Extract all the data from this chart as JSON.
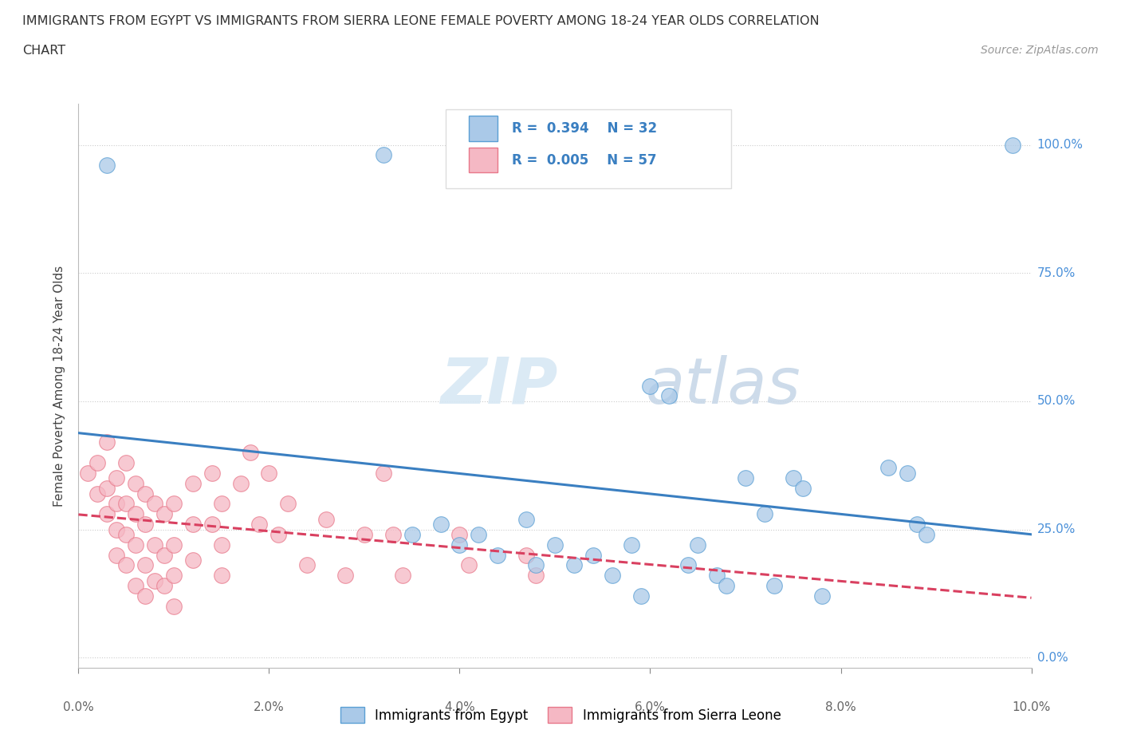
{
  "title_line1": "IMMIGRANTS FROM EGYPT VS IMMIGRANTS FROM SIERRA LEONE FEMALE POVERTY AMONG 18-24 YEAR OLDS CORRELATION",
  "title_line2": "CHART",
  "source_text": "Source: ZipAtlas.com",
  "ylabel": "Female Poverty Among 18-24 Year Olds",
  "xlim": [
    0.0,
    0.1
  ],
  "ylim": [
    -0.02,
    1.08
  ],
  "xtick_vals": [
    0.0,
    0.02,
    0.04,
    0.06,
    0.08,
    0.1
  ],
  "ytick_vals": [
    0.0,
    0.25,
    0.5,
    0.75,
    1.0
  ],
  "ytick_labels": [
    "0.0%",
    "25.0%",
    "50.0%",
    "75.0%",
    "100.0%"
  ],
  "egypt_color": "#aac9e8",
  "egypt_edge": "#5a9fd4",
  "sierra_color": "#f5b8c4",
  "sierra_edge": "#e8788a",
  "egypt_R": 0.394,
  "egypt_N": 32,
  "sierra_R": 0.005,
  "sierra_N": 57,
  "egypt_line_color": "#3a7fc1",
  "sierra_line_color": "#d94060",
  "watermark_zip": "ZIP",
  "watermark_atlas": "atlas",
  "legend_label_egypt": "Immigrants from Egypt",
  "legend_label_sierra": "Immigrants from Sierra Leone",
  "egypt_points": [
    [
      0.003,
      0.96
    ],
    [
      0.032,
      0.98
    ],
    [
      0.035,
      0.24
    ],
    [
      0.038,
      0.26
    ],
    [
      0.04,
      0.22
    ],
    [
      0.042,
      0.24
    ],
    [
      0.044,
      0.2
    ],
    [
      0.047,
      0.27
    ],
    [
      0.048,
      0.18
    ],
    [
      0.05,
      0.22
    ],
    [
      0.052,
      0.18
    ],
    [
      0.054,
      0.2
    ],
    [
      0.056,
      0.16
    ],
    [
      0.058,
      0.22
    ],
    [
      0.059,
      0.12
    ],
    [
      0.06,
      0.53
    ],
    [
      0.062,
      0.51
    ],
    [
      0.064,
      0.18
    ],
    [
      0.065,
      0.22
    ],
    [
      0.067,
      0.16
    ],
    [
      0.068,
      0.14
    ],
    [
      0.07,
      0.35
    ],
    [
      0.072,
      0.28
    ],
    [
      0.073,
      0.14
    ],
    [
      0.075,
      0.35
    ],
    [
      0.076,
      0.33
    ],
    [
      0.078,
      0.12
    ],
    [
      0.085,
      0.37
    ],
    [
      0.087,
      0.36
    ],
    [
      0.088,
      0.26
    ],
    [
      0.089,
      0.24
    ],
    [
      0.098,
      1.0
    ]
  ],
  "sierra_points": [
    [
      0.001,
      0.36
    ],
    [
      0.002,
      0.38
    ],
    [
      0.002,
      0.32
    ],
    [
      0.003,
      0.42
    ],
    [
      0.003,
      0.33
    ],
    [
      0.003,
      0.28
    ],
    [
      0.004,
      0.35
    ],
    [
      0.004,
      0.3
    ],
    [
      0.004,
      0.25
    ],
    [
      0.004,
      0.2
    ],
    [
      0.005,
      0.38
    ],
    [
      0.005,
      0.3
    ],
    [
      0.005,
      0.24
    ],
    [
      0.005,
      0.18
    ],
    [
      0.006,
      0.34
    ],
    [
      0.006,
      0.28
    ],
    [
      0.006,
      0.22
    ],
    [
      0.006,
      0.14
    ],
    [
      0.007,
      0.32
    ],
    [
      0.007,
      0.26
    ],
    [
      0.007,
      0.18
    ],
    [
      0.007,
      0.12
    ],
    [
      0.008,
      0.3
    ],
    [
      0.008,
      0.22
    ],
    [
      0.008,
      0.15
    ],
    [
      0.009,
      0.28
    ],
    [
      0.009,
      0.2
    ],
    [
      0.009,
      0.14
    ],
    [
      0.01,
      0.3
    ],
    [
      0.01,
      0.22
    ],
    [
      0.01,
      0.16
    ],
    [
      0.01,
      0.1
    ],
    [
      0.012,
      0.34
    ],
    [
      0.012,
      0.26
    ],
    [
      0.012,
      0.19
    ],
    [
      0.014,
      0.36
    ],
    [
      0.014,
      0.26
    ],
    [
      0.015,
      0.3
    ],
    [
      0.015,
      0.22
    ],
    [
      0.015,
      0.16
    ],
    [
      0.017,
      0.34
    ],
    [
      0.018,
      0.4
    ],
    [
      0.019,
      0.26
    ],
    [
      0.02,
      0.36
    ],
    [
      0.021,
      0.24
    ],
    [
      0.022,
      0.3
    ],
    [
      0.024,
      0.18
    ],
    [
      0.026,
      0.27
    ],
    [
      0.028,
      0.16
    ],
    [
      0.03,
      0.24
    ],
    [
      0.032,
      0.36
    ],
    [
      0.033,
      0.24
    ],
    [
      0.034,
      0.16
    ],
    [
      0.04,
      0.24
    ],
    [
      0.041,
      0.18
    ],
    [
      0.047,
      0.2
    ],
    [
      0.048,
      0.16
    ]
  ]
}
